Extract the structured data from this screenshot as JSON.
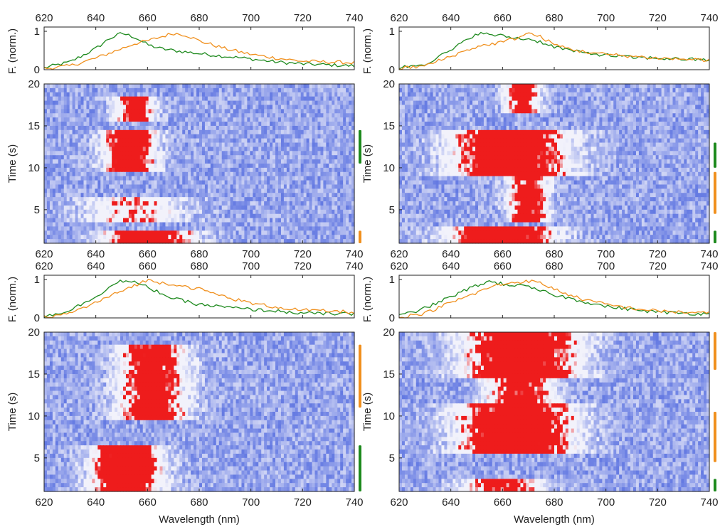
{
  "chart_data": {
    "type": "heatmap",
    "xlabel": "Wavelength (nm)",
    "spectrum_ylabel": "F. (norm.)",
    "heatmap_ylabel": "Time (s)",
    "xlim": [
      620,
      740
    ],
    "x_ticks": [
      "620",
      "640",
      "660",
      "680",
      "700",
      "720",
      "740"
    ],
    "spectrum_ylim": [
      0,
      1
    ],
    "spectrum_y_ticks": [
      "0",
      "1"
    ],
    "time_ylim": [
      1,
      20
    ],
    "time_ticks": [
      "5",
      "10",
      "15",
      "20"
    ],
    "colors": {
      "green": "#1e8a1e",
      "orange": "#f0901e",
      "low": "#1f3fd6",
      "mid": "#f2f2fb",
      "high": "#ee1c1c"
    },
    "panels": [
      {
        "id": "top-left",
        "spectra": [
          {
            "color": "green",
            "x": [
              620,
              630,
              640,
              645,
              650,
              655,
              660,
              665,
              670,
              680,
              690,
              700,
              710,
              720,
              740
            ],
            "y": [
              0.05,
              0.2,
              0.55,
              0.8,
              0.95,
              0.85,
              0.65,
              0.55,
              0.5,
              0.42,
              0.35,
              0.28,
              0.2,
              0.15,
              0.1
            ]
          },
          {
            "color": "orange",
            "x": [
              620,
              630,
              640,
              650,
              655,
              660,
              665,
              670,
              675,
              680,
              690,
              700,
              710,
              720,
              740
            ],
            "y": [
              0.03,
              0.1,
              0.3,
              0.55,
              0.68,
              0.75,
              0.85,
              0.95,
              0.9,
              0.75,
              0.55,
              0.4,
              0.3,
              0.22,
              0.18
            ]
          }
        ],
        "emission": [
          {
            "t0": 1,
            "t1": 2,
            "center": 660,
            "width": 16,
            "amp": 1.25
          },
          {
            "t0": 4,
            "t1": 6,
            "center": 655,
            "width": 18,
            "amp": 0.55
          },
          {
            "t0": 10,
            "t1": 14,
            "center": 653,
            "width": 9,
            "amp": 1.15
          },
          {
            "t0": 16,
            "t1": 18,
            "center": 655,
            "width": 7,
            "amp": 0.95
          }
        ],
        "markers": [
          {
            "color": "orange",
            "t0": 1,
            "t1": 2.5
          },
          {
            "color": "green",
            "t0": 10.5,
            "t1": 14.5
          }
        ]
      },
      {
        "id": "top-right",
        "spectra": [
          {
            "color": "green",
            "x": [
              620,
              630,
              640,
              650,
              660,
              665,
              670,
              675,
              680,
              690,
              700,
              710,
              720,
              740
            ],
            "y": [
              0.05,
              0.15,
              0.5,
              0.95,
              0.88,
              0.82,
              0.8,
              0.72,
              0.6,
              0.45,
              0.38,
              0.32,
              0.3,
              0.25
            ]
          },
          {
            "color": "orange",
            "x": [
              620,
              630,
              640,
              650,
              660,
              665,
              670,
              675,
              680,
              690,
              700,
              710,
              720,
              740
            ],
            "y": [
              0.03,
              0.1,
              0.35,
              0.6,
              0.72,
              0.82,
              0.95,
              0.85,
              0.65,
              0.48,
              0.4,
              0.35,
              0.3,
              0.25
            ]
          }
        ],
        "emission": [
          {
            "t0": 1,
            "t1": 2.5,
            "center": 660,
            "width": 18,
            "amp": 1.25
          },
          {
            "t0": 4,
            "t1": 9,
            "center": 670,
            "width": 7,
            "amp": 1.0
          },
          {
            "t0": 9.5,
            "t1": 14,
            "center": 663,
            "width": 20,
            "amp": 1.25
          },
          {
            "t0": 17,
            "t1": 20,
            "center": 668,
            "width": 6,
            "amp": 0.95
          }
        ],
        "markers": [
          {
            "color": "green",
            "t0": 1,
            "t1": 2.5
          },
          {
            "color": "orange",
            "t0": 4.5,
            "t1": 9.5
          },
          {
            "color": "green",
            "t0": 10,
            "t1": 13
          }
        ]
      },
      {
        "id": "bottom-left",
        "spectra": [
          {
            "color": "green",
            "x": [
              620,
              630,
              640,
              645,
              650,
              655,
              660,
              665,
              670,
              680,
              690,
              700,
              710,
              720,
              740
            ],
            "y": [
              0.03,
              0.2,
              0.55,
              0.8,
              0.97,
              0.92,
              0.8,
              0.65,
              0.5,
              0.35,
              0.28,
              0.22,
              0.18,
              0.12,
              0.1
            ]
          },
          {
            "color": "orange",
            "x": [
              620,
              630,
              640,
              650,
              655,
              660,
              665,
              670,
              680,
              690,
              700,
              710,
              720,
              740
            ],
            "y": [
              0.02,
              0.12,
              0.4,
              0.7,
              0.85,
              0.98,
              0.92,
              0.88,
              0.75,
              0.55,
              0.38,
              0.28,
              0.2,
              0.15
            ]
          }
        ],
        "emission": [
          {
            "t0": 1,
            "t1": 6,
            "center": 652,
            "width": 12,
            "amp": 1.3
          },
          {
            "t0": 10,
            "t1": 18,
            "center": 662,
            "width": 12,
            "amp": 1.0
          }
        ],
        "markers": [
          {
            "color": "green",
            "t0": 1,
            "t1": 6.5
          },
          {
            "color": "orange",
            "t0": 11,
            "t1": 18.5
          }
        ]
      },
      {
        "id": "bottom-right",
        "spectra": [
          {
            "color": "green",
            "x": [
              620,
              630,
              640,
              650,
              655,
              660,
              665,
              670,
              680,
              690,
              700,
              710,
              720,
              740
            ],
            "y": [
              0.05,
              0.25,
              0.55,
              0.85,
              0.95,
              0.88,
              0.85,
              0.8,
              0.6,
              0.45,
              0.3,
              0.22,
              0.15,
              0.1
            ]
          },
          {
            "color": "orange",
            "x": [
              620,
              630,
              640,
              650,
              655,
              660,
              665,
              670,
              675,
              680,
              690,
              700,
              710,
              720,
              740
            ],
            "y": [
              0.02,
              0.12,
              0.4,
              0.65,
              0.8,
              0.88,
              0.93,
              0.96,
              0.9,
              0.75,
              0.5,
              0.35,
              0.25,
              0.18,
              0.12
            ]
          }
        ],
        "emission": [
          {
            "t0": 1,
            "t1": 2,
            "center": 660,
            "width": 14,
            "amp": 0.95
          },
          {
            "t0": 6,
            "t1": 11,
            "center": 665,
            "width": 20,
            "amp": 1.25
          },
          {
            "t0": 12,
            "t1": 15,
            "center": 667,
            "width": 12,
            "amp": 0.95
          },
          {
            "t0": 15,
            "t1": 20,
            "center": 667,
            "width": 20,
            "amp": 1.25
          }
        ],
        "markers": [
          {
            "color": "green",
            "t0": 1,
            "t1": 2.5
          },
          {
            "color": "orange",
            "t0": 4.5,
            "t1": 10.5
          },
          {
            "color": "orange",
            "t0": 15.5,
            "t1": 20
          }
        ]
      }
    ]
  }
}
